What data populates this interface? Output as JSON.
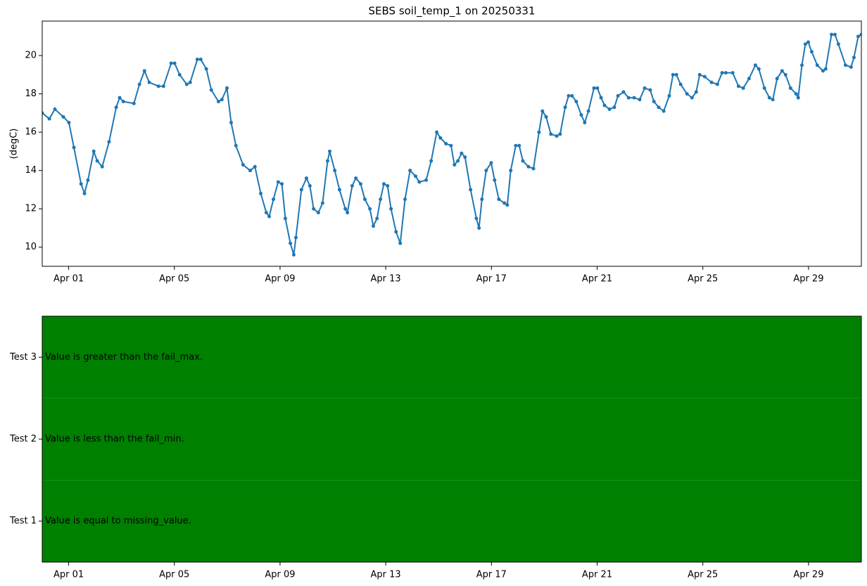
{
  "chart_data": [
    {
      "type": "line",
      "title": "SEBS soil_temp_1 on 20250331",
      "y_label": "(degC)",
      "color": "#1f77b4",
      "markers": true,
      "x": [
        0,
        0.27,
        0.48,
        0.8,
        1.01,
        1.2,
        1.47,
        1.6,
        1.73,
        1.95,
        2.08,
        2.27,
        2.53,
        2.8,
        2.93,
        3.07,
        3.47,
        3.68,
        3.87,
        4.05,
        4.4,
        4.59,
        4.88,
        5.01,
        5.2,
        5.47,
        5.6,
        5.87,
        6.0,
        6.21,
        6.4,
        6.67,
        6.8,
        6.99,
        7.15,
        7.33,
        7.6,
        7.87,
        8.05,
        8.27,
        8.48,
        8.59,
        8.75,
        8.93,
        9.07,
        9.2,
        9.39,
        9.52,
        9.6,
        9.81,
        10.0,
        10.13,
        10.27,
        10.45,
        10.61,
        10.8,
        10.88,
        11.07,
        11.25,
        11.47,
        11.55,
        11.73,
        11.87,
        12.05,
        12.21,
        12.4,
        12.53,
        12.67,
        12.8,
        12.93,
        13.07,
        13.2,
        13.39,
        13.55,
        13.73,
        13.92,
        14.13,
        14.27,
        14.53,
        14.72,
        14.93,
        15.07,
        15.28,
        15.47,
        15.6,
        15.73,
        15.87,
        16.0,
        16.21,
        16.43,
        16.53,
        16.64,
        16.8,
        16.99,
        17.12,
        17.28,
        17.49,
        17.6,
        17.73,
        17.92,
        18.05,
        18.19,
        18.4,
        18.59,
        18.8,
        18.93,
        19.07,
        19.25,
        19.47,
        19.6,
        19.79,
        19.92,
        20.05,
        20.21,
        20.4,
        20.53,
        20.67,
        20.88,
        21.01,
        21.15,
        21.28,
        21.47,
        21.65,
        21.79,
        22.0,
        22.19,
        22.4,
        22.61,
        22.8,
        23.01,
        23.15,
        23.33,
        23.52,
        23.73,
        23.87,
        24.0,
        24.16,
        24.4,
        24.59,
        24.75,
        24.88,
        25.07,
        25.33,
        25.55,
        25.73,
        25.87,
        26.13,
        26.35,
        26.53,
        26.75,
        26.99,
        27.12,
        27.33,
        27.52,
        27.65,
        27.81,
        28.0,
        28.13,
        28.32,
        28.53,
        28.61,
        28.75,
        28.88,
        28.99,
        29.12,
        29.33,
        29.55,
        29.65,
        29.87,
        30.0,
        30.13,
        30.4,
        30.61,
        30.72,
        30.88,
        31.0
      ],
      "values": [
        17.0,
        16.7,
        17.2,
        16.8,
        16.5,
        15.2,
        13.3,
        12.8,
        13.5,
        15.0,
        14.5,
        14.2,
        15.5,
        17.3,
        17.8,
        17.6,
        17.5,
        18.5,
        19.2,
        18.6,
        18.4,
        18.4,
        19.6,
        19.6,
        19.0,
        18.5,
        18.6,
        19.8,
        19.8,
        19.3,
        18.2,
        17.6,
        17.7,
        18.3,
        16.5,
        15.3,
        14.3,
        14.0,
        14.2,
        12.8,
        11.8,
        11.6,
        12.5,
        13.4,
        13.3,
        11.5,
        10.2,
        9.6,
        10.5,
        13.0,
        13.6,
        13.2,
        12.0,
        11.8,
        12.3,
        14.5,
        15.0,
        14.0,
        13.0,
        12.0,
        11.8,
        13.2,
        13.6,
        13.3,
        12.5,
        12.0,
        11.1,
        11.5,
        12.5,
        13.3,
        13.2,
        12.0,
        10.8,
        10.2,
        12.5,
        14.0,
        13.7,
        13.4,
        13.5,
        14.5,
        16.0,
        15.7,
        15.4,
        15.3,
        14.3,
        14.5,
        14.9,
        14.7,
        13.0,
        11.5,
        11.0,
        12.5,
        14.0,
        14.4,
        13.5,
        12.5,
        12.3,
        12.2,
        14.0,
        15.3,
        15.3,
        14.5,
        14.2,
        14.1,
        16.0,
        17.1,
        16.8,
        15.9,
        15.8,
        15.9,
        17.3,
        17.9,
        17.9,
        17.6,
        16.9,
        16.5,
        17.1,
        18.3,
        18.3,
        17.8,
        17.4,
        17.2,
        17.3,
        17.9,
        18.1,
        17.8,
        17.8,
        17.7,
        18.3,
        18.2,
        17.6,
        17.3,
        17.1,
        17.9,
        19.0,
        19.0,
        18.5,
        18.0,
        17.8,
        18.1,
        19.0,
        18.9,
        18.6,
        18.5,
        19.1,
        19.1,
        19.1,
        18.4,
        18.3,
        18.8,
        19.5,
        19.3,
        18.3,
        17.8,
        17.7,
        18.8,
        19.2,
        19.0,
        18.3,
        18.0,
        17.8,
        19.5,
        20.6,
        20.7,
        20.2,
        19.5,
        19.2,
        19.3,
        21.1,
        21.1,
        20.6,
        19.5,
        19.4,
        19.9,
        21.0,
        21.1
      ],
      "xlim": [
        0,
        31
      ],
      "xticks": [
        {
          "value": 1,
          "label": "Apr 01"
        },
        {
          "value": 5,
          "label": "Apr 05"
        },
        {
          "value": 9,
          "label": "Apr 09"
        },
        {
          "value": 13,
          "label": "Apr 13"
        },
        {
          "value": 17,
          "label": "Apr 17"
        },
        {
          "value": 21,
          "label": "Apr 21"
        },
        {
          "value": 25,
          "label": "Apr 25"
        },
        {
          "value": 29,
          "label": "Apr 29"
        }
      ],
      "ylim": [
        9.0,
        21.8
      ],
      "yticks": [
        10,
        12,
        14,
        16,
        18,
        20
      ]
    },
    {
      "type": "flags",
      "color": "green",
      "categories": [
        "Test 1",
        "Test 2",
        "Test 3"
      ],
      "labels": [
        "Value is equal to missing_value.",
        "Value is less than the fail_min.",
        "Value is greater than the fail_max."
      ],
      "xlim": [
        0,
        31
      ],
      "xticks": [
        {
          "value": 1,
          "label": "Apr 01"
        },
        {
          "value": 5,
          "label": "Apr 05"
        },
        {
          "value": 9,
          "label": "Apr 09"
        },
        {
          "value": 13,
          "label": "Apr 13"
        },
        {
          "value": 17,
          "label": "Apr 17"
        },
        {
          "value": 21,
          "label": "Apr 21"
        },
        {
          "value": 25,
          "label": "Apr 25"
        },
        {
          "value": 29,
          "label": "Apr 29"
        }
      ]
    }
  ]
}
